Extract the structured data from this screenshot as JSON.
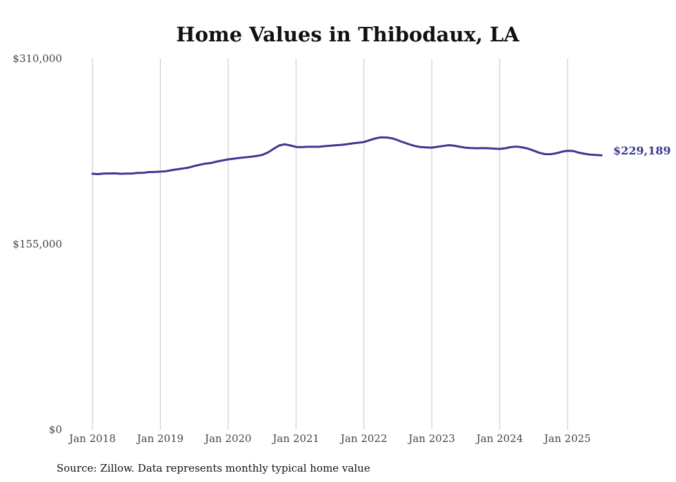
{
  "chart_data": {
    "type": "line",
    "title": "Home Values in Thibodaux, LA",
    "xlabel": "",
    "ylabel": "",
    "ylim": [
      0,
      310000
    ],
    "y_ticks": [
      "$310,000",
      "$155,000",
      "$0"
    ],
    "y_tick_values": [
      310000,
      155000,
      0
    ],
    "x_ticks": [
      "Jan 2018",
      "Jan 2019",
      "Jan 2020",
      "Jan 2021",
      "Jan 2022",
      "Jan 2023",
      "Jan 2024",
      "Jan 2025"
    ],
    "x_tick_dates": [
      "2018-01",
      "2019-01",
      "2020-01",
      "2021-01",
      "2022-01",
      "2023-01",
      "2024-01",
      "2025-01"
    ],
    "grid": "vertical",
    "series": [
      {
        "color": "#3b3794",
        "x": [
          "2018-01",
          "2018-02",
          "2018-03",
          "2018-04",
          "2018-05",
          "2018-06",
          "2018-07",
          "2018-08",
          "2018-09",
          "2018-10",
          "2018-11",
          "2018-12",
          "2019-01",
          "2019-02",
          "2019-03",
          "2019-04",
          "2019-05",
          "2019-06",
          "2019-07",
          "2019-08",
          "2019-09",
          "2019-10",
          "2019-11",
          "2019-12",
          "2020-01",
          "2020-02",
          "2020-03",
          "2020-04",
          "2020-05",
          "2020-06",
          "2020-07",
          "2020-08",
          "2020-09",
          "2020-10",
          "2020-11",
          "2020-12",
          "2021-01",
          "2021-02",
          "2021-03",
          "2021-04",
          "2021-05",
          "2021-06",
          "2021-07",
          "2021-08",
          "2021-09",
          "2021-10",
          "2021-11",
          "2021-12",
          "2022-01",
          "2022-02",
          "2022-03",
          "2022-04",
          "2022-05",
          "2022-06",
          "2022-07",
          "2022-08",
          "2022-09",
          "2022-10",
          "2022-11",
          "2022-12",
          "2023-01",
          "2023-02",
          "2023-03",
          "2023-04",
          "2023-05",
          "2023-06",
          "2023-07",
          "2023-08",
          "2023-09",
          "2023-10",
          "2023-11",
          "2023-12",
          "2024-01",
          "2024-02",
          "2024-03",
          "2024-04",
          "2024-05",
          "2024-06",
          "2024-07",
          "2024-08",
          "2024-09",
          "2024-10",
          "2024-11",
          "2024-12",
          "2025-01",
          "2025-02",
          "2025-03",
          "2025-04",
          "2025-05",
          "2025-06",
          "2025-07"
        ],
        "values": [
          213800,
          213500,
          214000,
          214000,
          214100,
          213800,
          213900,
          214000,
          214500,
          214600,
          215200,
          215300,
          215600,
          215900,
          216800,
          217500,
          218200,
          218900,
          220200,
          221300,
          222300,
          222800,
          224000,
          224900,
          225800,
          226400,
          227000,
          227500,
          228000,
          228600,
          229500,
          231500,
          234500,
          237400,
          238400,
          237400,
          236200,
          236000,
          236300,
          236300,
          236300,
          236800,
          237200,
          237600,
          237900,
          238500,
          239200,
          239700,
          240300,
          241800,
          243300,
          244200,
          244100,
          243400,
          241800,
          240000,
          238400,
          237000,
          236100,
          235800,
          235600,
          236300,
          237000,
          237700,
          237200,
          236300,
          235500,
          235200,
          235100,
          235200,
          235100,
          234800,
          234500,
          235100,
          236100,
          236500,
          235800,
          234800,
          233100,
          231300,
          230200,
          230100,
          230900,
          232200,
          233000,
          232800,
          231400,
          230500,
          229800,
          229500,
          229189
        ],
        "end_label": "$229,189"
      }
    ]
  },
  "footer": {
    "source": "Source: Zillow. Data represents monthly typical home value"
  }
}
